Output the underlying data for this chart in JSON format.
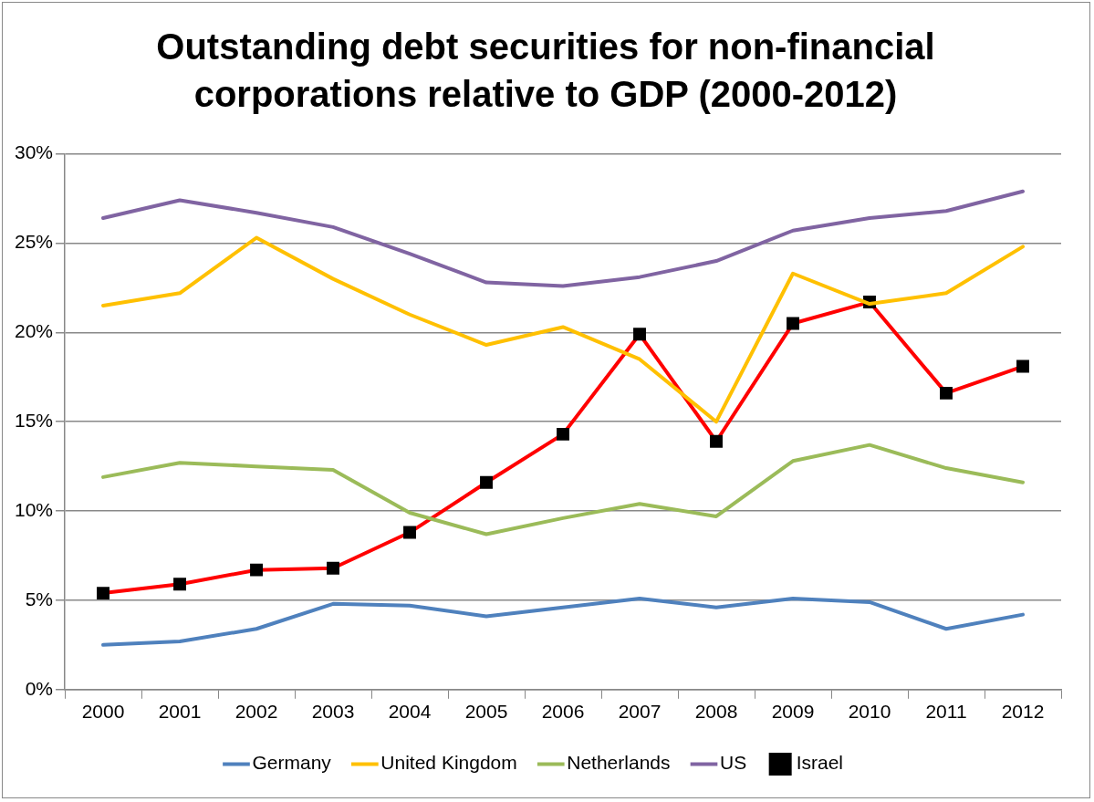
{
  "chart_data": {
    "type": "line",
    "title": "Outstanding debt securities for non-financial corporations relative to GDP (2000-2012)",
    "categories": [
      "2000",
      "2001",
      "2002",
      "2003",
      "2004",
      "2005",
      "2006",
      "2007",
      "2008",
      "2009",
      "2010",
      "2011",
      "2012"
    ],
    "series": [
      {
        "name": "Germany",
        "color": "#4f81bd",
        "marker": "none",
        "values": [
          2.5,
          2.7,
          3.4,
          4.8,
          4.7,
          4.1,
          4.6,
          5.1,
          4.6,
          5.1,
          4.9,
          3.4,
          4.2
        ]
      },
      {
        "name": "United Kingdom",
        "color": "#ffc000",
        "marker": "none",
        "values": [
          21.5,
          22.2,
          25.3,
          23.0,
          21.0,
          19.3,
          20.3,
          18.5,
          15.0,
          23.3,
          21.6,
          22.2,
          24.8
        ]
      },
      {
        "name": "Netherlands",
        "color": "#9bbb59",
        "marker": "none",
        "values": [
          11.9,
          12.7,
          12.5,
          12.3,
          9.9,
          8.7,
          9.6,
          10.4,
          9.7,
          12.8,
          13.7,
          12.4,
          11.6
        ]
      },
      {
        "name": "US",
        "color": "#8064a2",
        "marker": "none",
        "values": [
          26.4,
          27.4,
          26.7,
          25.9,
          24.4,
          22.8,
          22.6,
          23.1,
          24.0,
          25.7,
          26.4,
          26.8,
          27.9
        ]
      },
      {
        "name": "Israel",
        "color": "#ff0000",
        "marker": "square",
        "values": [
          5.4,
          5.9,
          6.7,
          6.8,
          8.8,
          11.6,
          14.3,
          19.9,
          13.9,
          20.5,
          21.7,
          16.6,
          18.1
        ]
      }
    ],
    "ylim": [
      0,
      30
    ],
    "yticks": [
      {
        "value": 0,
        "label": "0%"
      },
      {
        "value": 5,
        "label": "5%"
      },
      {
        "value": 10,
        "label": "10%"
      },
      {
        "value": 15,
        "label": "15%"
      },
      {
        "value": 20,
        "label": "20%"
      },
      {
        "value": 25,
        "label": "25%"
      },
      {
        "value": 30,
        "label": "30%"
      }
    ],
    "grid": "y",
    "legend": "bottom",
    "line_style": "solid"
  }
}
